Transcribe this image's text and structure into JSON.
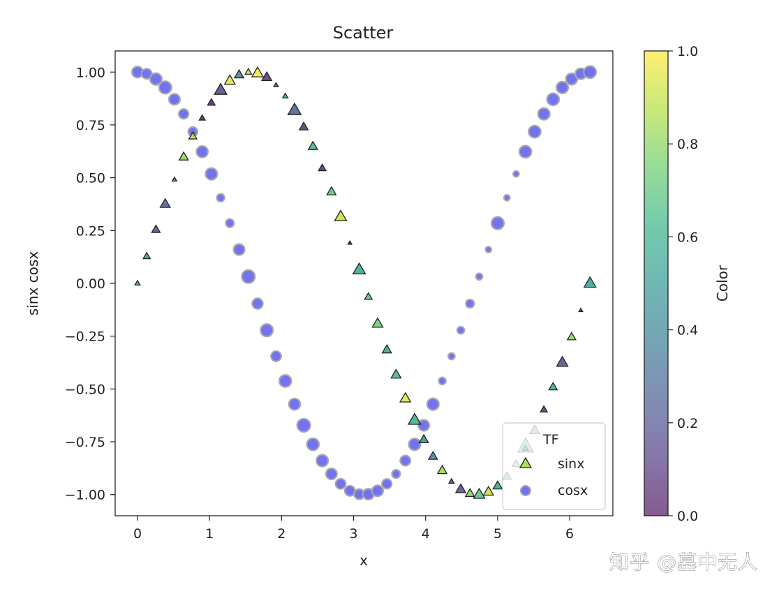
{
  "chart_data": {
    "type": "scatter",
    "title": "Scatter",
    "xlabel": "x",
    "ylabel": "sinx cosx",
    "xlim": [
      -0.31,
      6.6
    ],
    "ylim": [
      -1.1,
      1.1
    ],
    "xticks": [
      0,
      1,
      2,
      3,
      4,
      5,
      6
    ],
    "yticks": [
      -1.0,
      -0.75,
      -0.5,
      -0.25,
      0.0,
      0.25,
      0.5,
      0.75,
      1.0
    ],
    "xtick_labels": [
      "0",
      "1",
      "2",
      "3",
      "4",
      "5",
      "6"
    ],
    "ytick_labels": [
      "−1.00",
      "−0.75",
      "−0.50",
      "−0.25",
      "0.00",
      "0.25",
      "0.50",
      "0.75",
      "1.00"
    ],
    "grid": false,
    "colorbar": {
      "label": "Color",
      "range": [
        0.0,
        1.0
      ],
      "ticks": [
        0.0,
        0.2,
        0.4,
        0.6,
        0.8,
        1.0
      ],
      "tick_labels": [
        "0.0",
        "0.2",
        "0.4",
        "0.6",
        "0.8",
        "1.0"
      ],
      "colormap": "viridis",
      "alpha": 0.65
    },
    "legend": {
      "title": "TF",
      "placement": "lower right",
      "entries": [
        "sinx",
        "cosx"
      ]
    },
    "series": [
      {
        "name": "sinx",
        "marker": "triangle",
        "edge_color": "#222222",
        "alpha": 0.8,
        "x": [
          0.0,
          0.128,
          0.256,
          0.385,
          0.513,
          0.641,
          0.769,
          0.898,
          1.026,
          1.154,
          1.282,
          1.411,
          1.539,
          1.667,
          1.795,
          1.924,
          2.052,
          2.18,
          2.308,
          2.436,
          2.565,
          2.693,
          2.821,
          2.949,
          3.078,
          3.206,
          3.334,
          3.462,
          3.59,
          3.719,
          3.847,
          3.975,
          4.103,
          4.231,
          4.36,
          4.488,
          4.616,
          4.744,
          4.873,
          5.001,
          5.129,
          5.257,
          5.385,
          5.514,
          5.642,
          5.77,
          5.898,
          6.027,
          6.155,
          6.283
        ],
        "y": [
          0.0,
          0.128,
          0.254,
          0.375,
          0.491,
          0.598,
          0.696,
          0.782,
          0.855,
          0.914,
          0.959,
          0.987,
          1.0,
          0.995,
          0.975,
          0.938,
          0.886,
          0.819,
          0.74,
          0.648,
          0.545,
          0.433,
          0.315,
          0.191,
          0.064,
          -0.064,
          -0.191,
          -0.315,
          -0.433,
          -0.545,
          -0.648,
          -0.74,
          -0.819,
          -0.886,
          -0.938,
          -0.975,
          -0.995,
          -1.0,
          -0.987,
          -0.959,
          -0.914,
          -0.855,
          -0.782,
          -0.696,
          -0.598,
          -0.491,
          -0.375,
          -0.254,
          -0.128,
          0.0
        ],
        "color_values": [
          0.55,
          0.55,
          0.2,
          0.25,
          0.25,
          0.8,
          0.9,
          0.05,
          0.05,
          0.15,
          0.95,
          0.4,
          0.9,
          0.98,
          0.1,
          0.3,
          0.6,
          0.25,
          0.1,
          0.65,
          0.08,
          0.7,
          0.9,
          0.05,
          0.55,
          0.7,
          0.75,
          0.55,
          0.65,
          0.95,
          0.6,
          0.45,
          0.4,
          0.85,
          0.2,
          0.2,
          0.8,
          0.7,
          0.9,
          0.55,
          0.55,
          0.75,
          0.6,
          0.5,
          0.1,
          0.6,
          0.2,
          0.8,
          0.1,
          0.55
        ],
        "sizes": [
          20,
          35,
          50,
          70,
          15,
          60,
          45,
          25,
          40,
          110,
          80,
          60,
          30,
          90,
          70,
          15,
          20,
          120,
          55,
          60,
          40,
          60,
          100,
          10,
          110,
          40,
          80,
          60,
          70,
          80,
          110,
          60,
          55,
          60,
          20,
          70,
          55,
          90,
          70,
          60,
          50,
          40,
          25,
          70,
          35,
          50,
          90,
          50,
          10,
          100
        ]
      },
      {
        "name": "cosx",
        "marker": "circle",
        "face_color": "#5a5aee",
        "edge_color": "#aaaaaa",
        "alpha": 0.85,
        "x": [
          0.0,
          0.128,
          0.256,
          0.385,
          0.513,
          0.641,
          0.769,
          0.898,
          1.026,
          1.154,
          1.282,
          1.411,
          1.539,
          1.667,
          1.795,
          1.924,
          2.052,
          2.18,
          2.308,
          2.436,
          2.565,
          2.693,
          2.821,
          2.949,
          3.078,
          3.206,
          3.334,
          3.462,
          3.59,
          3.719,
          3.847,
          3.975,
          4.103,
          4.231,
          4.36,
          4.488,
          4.616,
          4.744,
          4.873,
          5.001,
          5.129,
          5.257,
          5.385,
          5.514,
          5.642,
          5.77,
          5.898,
          6.027,
          6.155,
          6.283
        ],
        "y": [
          1.0,
          0.992,
          0.967,
          0.927,
          0.871,
          0.802,
          0.718,
          0.623,
          0.518,
          0.405,
          0.285,
          0.16,
          0.032,
          -0.096,
          -0.222,
          -0.345,
          -0.462,
          -0.572,
          -0.672,
          -0.762,
          -0.839,
          -0.902,
          -0.949,
          -0.982,
          -0.998,
          -0.998,
          -0.982,
          -0.949,
          -0.902,
          -0.839,
          -0.762,
          -0.672,
          -0.572,
          -0.462,
          -0.345,
          -0.222,
          -0.096,
          0.032,
          0.16,
          0.285,
          0.405,
          0.518,
          0.623,
          0.718,
          0.802,
          0.871,
          0.927,
          0.967,
          0.992,
          1.0
        ],
        "sizes": [
          70,
          60,
          80,
          90,
          70,
          55,
          50,
          75,
          80,
          35,
          40,
          70,
          100,
          65,
          90,
          60,
          85,
          75,
          100,
          85,
          80,
          70,
          60,
          60,
          60,
          70,
          70,
          55,
          40,
          60,
          80,
          70,
          80,
          30,
          25,
          30,
          40,
          25,
          20,
          90,
          20,
          20,
          85,
          85,
          80,
          85,
          80,
          75,
          70,
          85
        ]
      }
    ]
  },
  "watermark": {
    "text": "知乎 @墓中无人"
  }
}
